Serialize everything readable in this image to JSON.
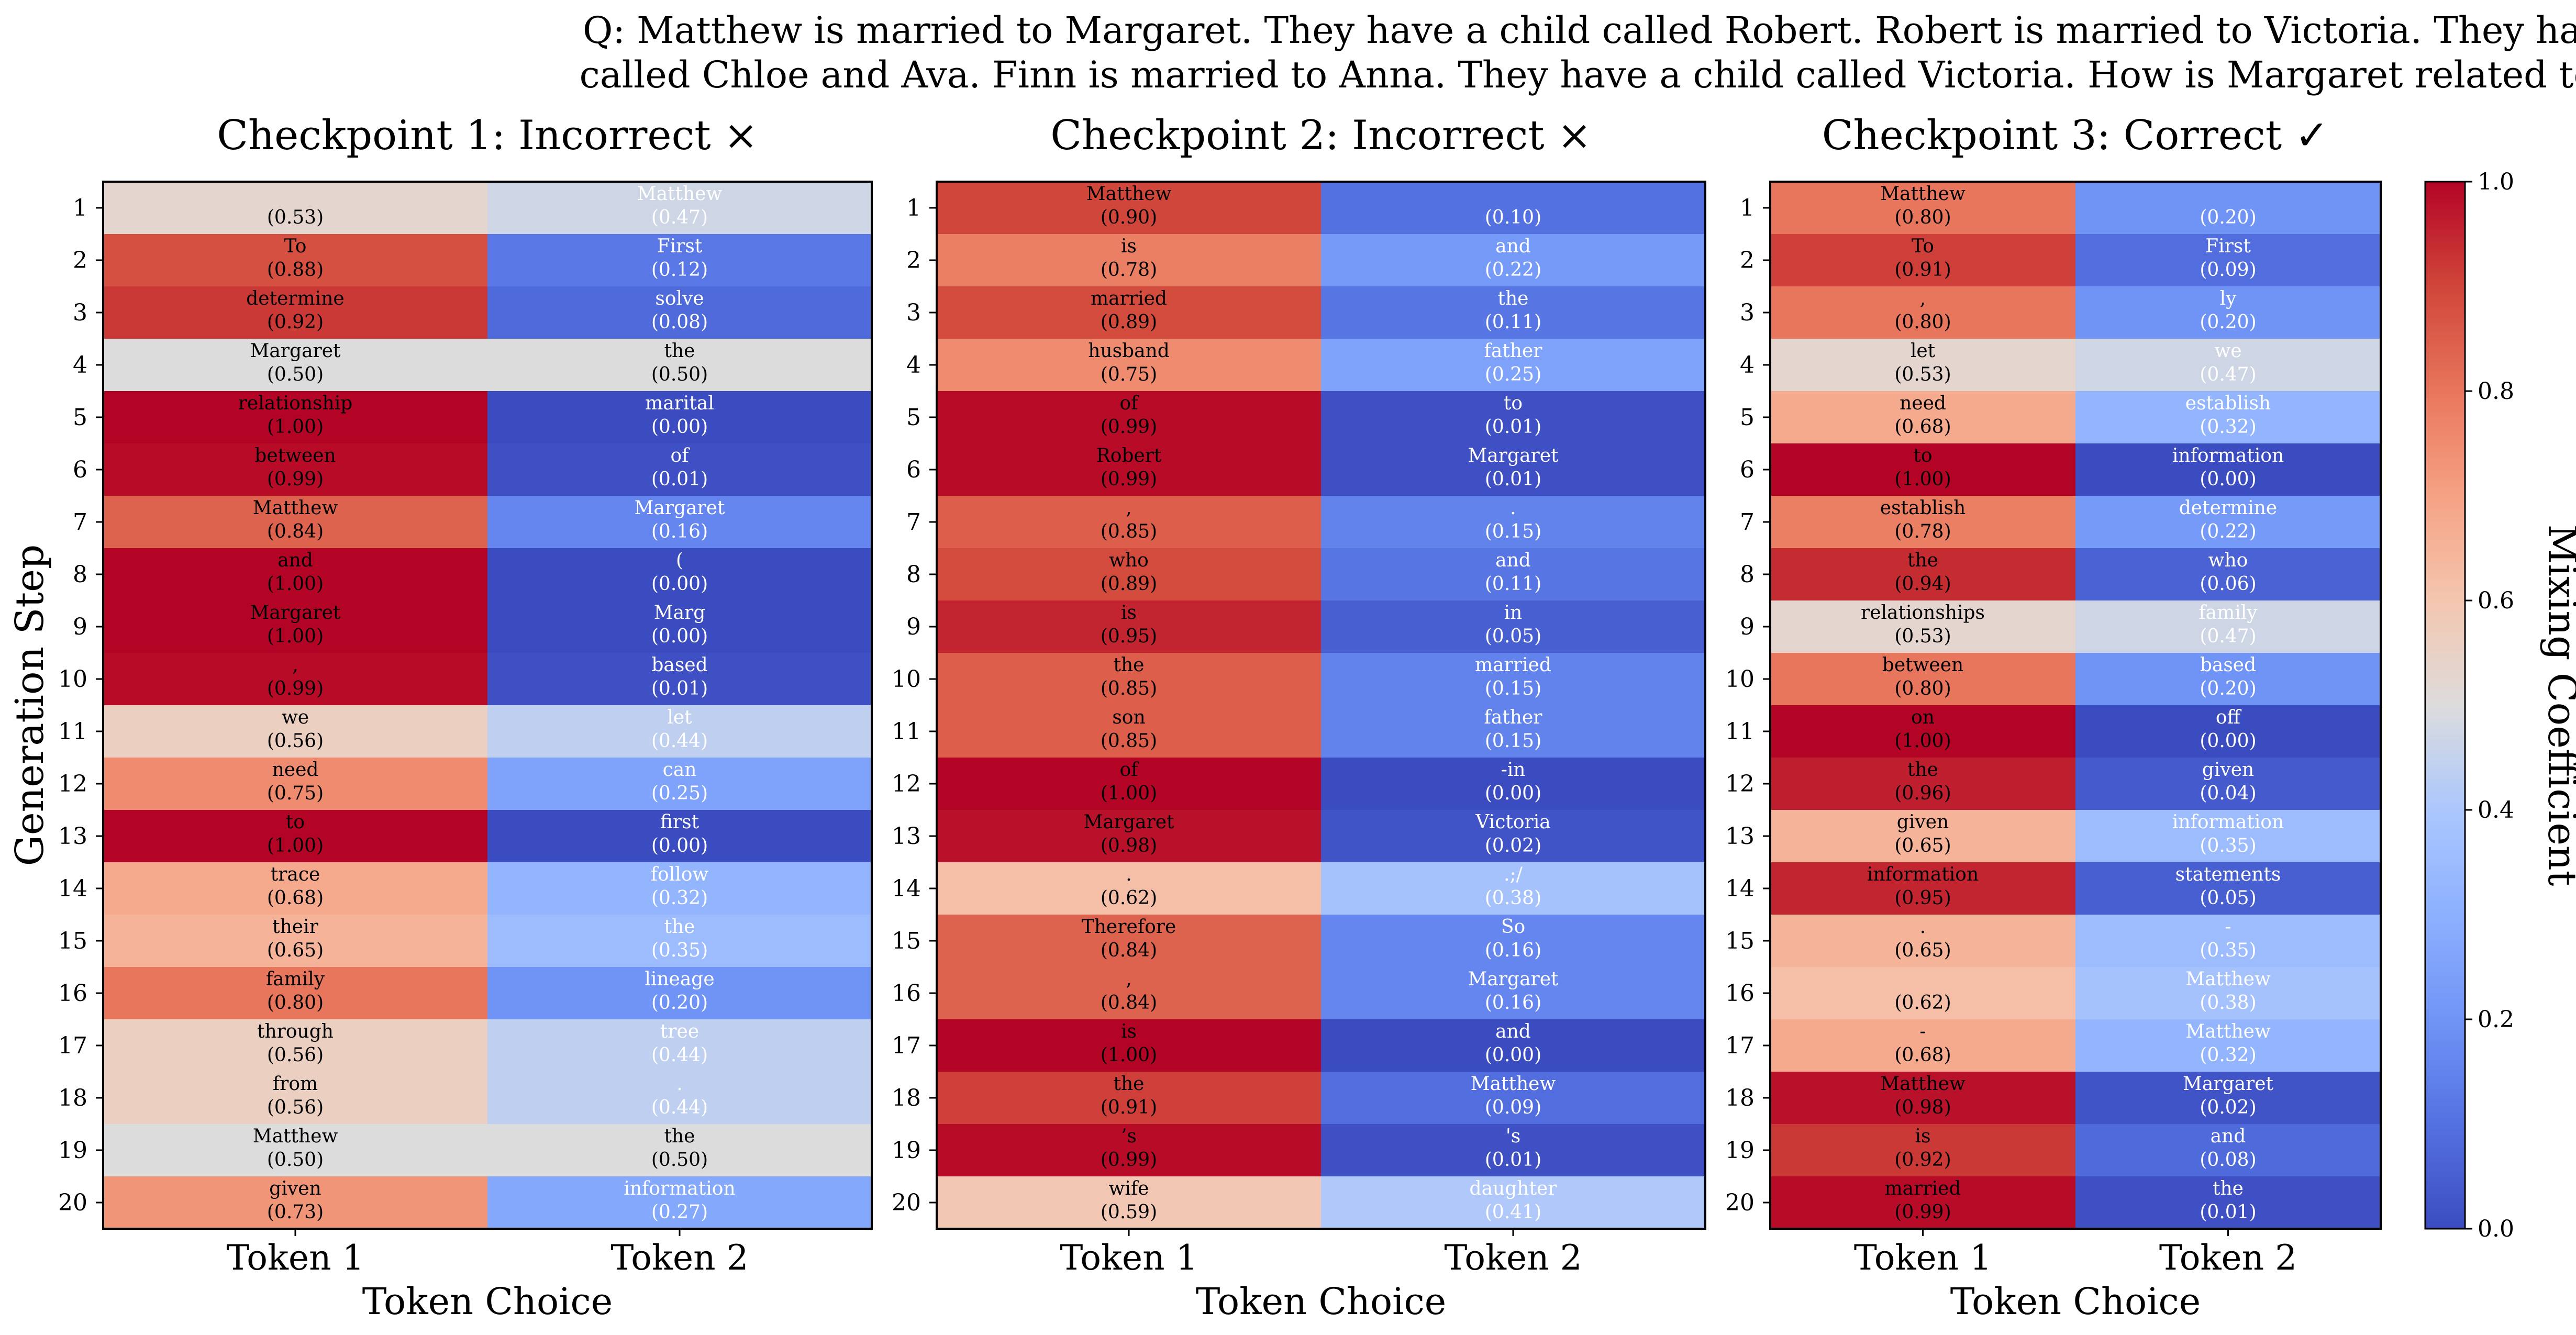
{
  "question": {
    "line1": "Q: Matthew is married to Margaret. They have a child called Robert. Robert is married to Victoria. They have children",
    "line2": "called Chloe and Ava. Finn is married to Anna. They have a child called Victoria. How is Margaret related to Matthew?"
  },
  "colorbar": {
    "label": "Mixing Coefficient",
    "range": [
      0.0,
      1.0
    ],
    "ticks": [
      "0.0",
      "0.2",
      "0.4",
      "0.6",
      "0.8",
      "1.0"
    ],
    "colormap": "coolwarm",
    "low_color": "#3b4cc0",
    "mid_color": "#dddcdc",
    "high_color": "#b40426"
  },
  "chart_data": [
    {
      "type": "heatmap",
      "title": "Checkpoint 1: Incorrect ×",
      "xlabel": "Token Choice",
      "ylabel": "Generation Step",
      "columns": [
        "Token 1",
        "Token 2"
      ],
      "steps": [
        "1",
        "2",
        "3",
        "4",
        "5",
        "6",
        "7",
        "8",
        "9",
        "10",
        "11",
        "12",
        "13",
        "14",
        "15",
        "16",
        "17",
        "18",
        "19",
        "20"
      ],
      "token1": [
        "",
        "To",
        "determine",
        "Margaret",
        "relationship",
        "between",
        "Matthew",
        "and",
        "Margaret",
        ",",
        "we",
        "need",
        "to",
        "trace",
        "their",
        "family",
        "through",
        "from",
        "Matthew",
        "given"
      ],
      "value1": [
        "0.53",
        "0.88",
        "0.92",
        "0.50",
        "1.00",
        "0.99",
        "0.84",
        "1.00",
        "1.00",
        "0.99",
        "0.56",
        "0.75",
        "1.00",
        "0.68",
        "0.65",
        "0.80",
        "0.56",
        "0.56",
        "0.50",
        "0.73"
      ],
      "token2": [
        "Matthew",
        "First",
        "solve",
        "the",
        "marital",
        "of",
        "Margaret",
        "(",
        "Marg",
        "based",
        "let",
        "can",
        "first",
        "follow",
        "the",
        "lineage",
        "tree",
        ".",
        "the",
        "information"
      ],
      "value2": [
        "0.47",
        "0.12",
        "0.08",
        "0.50",
        "0.00",
        "0.01",
        "0.16",
        "0.00",
        "0.00",
        "0.01",
        "0.44",
        "0.25",
        "0.00",
        "0.32",
        "0.35",
        "0.20",
        "0.44",
        "0.44",
        "0.50",
        "0.27"
      ]
    },
    {
      "type": "heatmap",
      "title": "Checkpoint 2: Incorrect ×",
      "xlabel": "Token Choice",
      "columns": [
        "Token 1",
        "Token 2"
      ],
      "steps": [
        "1",
        "2",
        "3",
        "4",
        "5",
        "6",
        "7",
        "8",
        "9",
        "10",
        "11",
        "12",
        "13",
        "14",
        "15",
        "16",
        "17",
        "18",
        "19",
        "20"
      ],
      "token1": [
        "Matthew",
        "is",
        "married",
        "husband",
        "of",
        "Robert",
        ",",
        "who",
        "is",
        "the",
        "son",
        "of",
        "Margaret",
        ".",
        "Therefore",
        ",",
        "is",
        "the",
        "’s",
        "wife"
      ],
      "value1": [
        "0.90",
        "0.78",
        "0.89",
        "0.75",
        "0.99",
        "0.99",
        "0.85",
        "0.89",
        "0.95",
        "0.85",
        "0.85",
        "1.00",
        "0.98",
        "0.62",
        "0.84",
        "0.84",
        "1.00",
        "0.91",
        "0.99",
        "0.59"
      ],
      "token2": [
        "",
        "and",
        "the",
        "father",
        "to",
        "Margaret",
        ".",
        "and",
        "in",
        "married",
        "father",
        "-in",
        "Victoria",
        ".;/",
        "So",
        "Margaret",
        "and",
        "Matthew",
        "'s",
        "daughter"
      ],
      "value2": [
        "0.10",
        "0.22",
        "0.11",
        "0.25",
        "0.01",
        "0.01",
        "0.15",
        "0.11",
        "0.05",
        "0.15",
        "0.15",
        "0.00",
        "0.02",
        "0.38",
        "0.16",
        "0.16",
        "0.00",
        "0.09",
        "0.01",
        "0.41"
      ]
    },
    {
      "type": "heatmap",
      "title": "Checkpoint 3: Correct ✓",
      "xlabel": "Token Choice",
      "columns": [
        "Token 1",
        "Token 2"
      ],
      "steps": [
        "1",
        "2",
        "3",
        "4",
        "5",
        "6",
        "7",
        "8",
        "9",
        "10",
        "11",
        "12",
        "13",
        "14",
        "15",
        "16",
        "17",
        "18",
        "19",
        "20"
      ],
      "token1": [
        "Matthew",
        "To",
        ",",
        "let",
        "need",
        "to",
        "establish",
        "the",
        "relationships",
        "between",
        "on",
        "the",
        "given",
        "information",
        ".",
        "",
        "-",
        "Matthew",
        "is",
        "married"
      ],
      "value1": [
        "0.80",
        "0.91",
        "0.80",
        "0.53",
        "0.68",
        "1.00",
        "0.78",
        "0.94",
        "0.53",
        "0.80",
        "1.00",
        "0.96",
        "0.65",
        "0.95",
        "0.65",
        "0.62",
        "0.68",
        "0.98",
        "0.92",
        "0.99"
      ],
      "token2": [
        "",
        "First",
        "ly",
        "we",
        "establish",
        "information",
        "determine",
        "who",
        "family",
        "based",
        "off",
        "given",
        "information",
        "statements",
        "-",
        "Matthew",
        "Matthew",
        "Margaret",
        "and",
        "the"
      ],
      "value2": [
        "0.20",
        "0.09",
        "0.20",
        "0.47",
        "0.32",
        "0.00",
        "0.22",
        "0.06",
        "0.47",
        "0.20",
        "0.00",
        "0.04",
        "0.35",
        "0.05",
        "0.35",
        "0.38",
        "0.32",
        "0.02",
        "0.08",
        "0.01"
      ]
    }
  ]
}
